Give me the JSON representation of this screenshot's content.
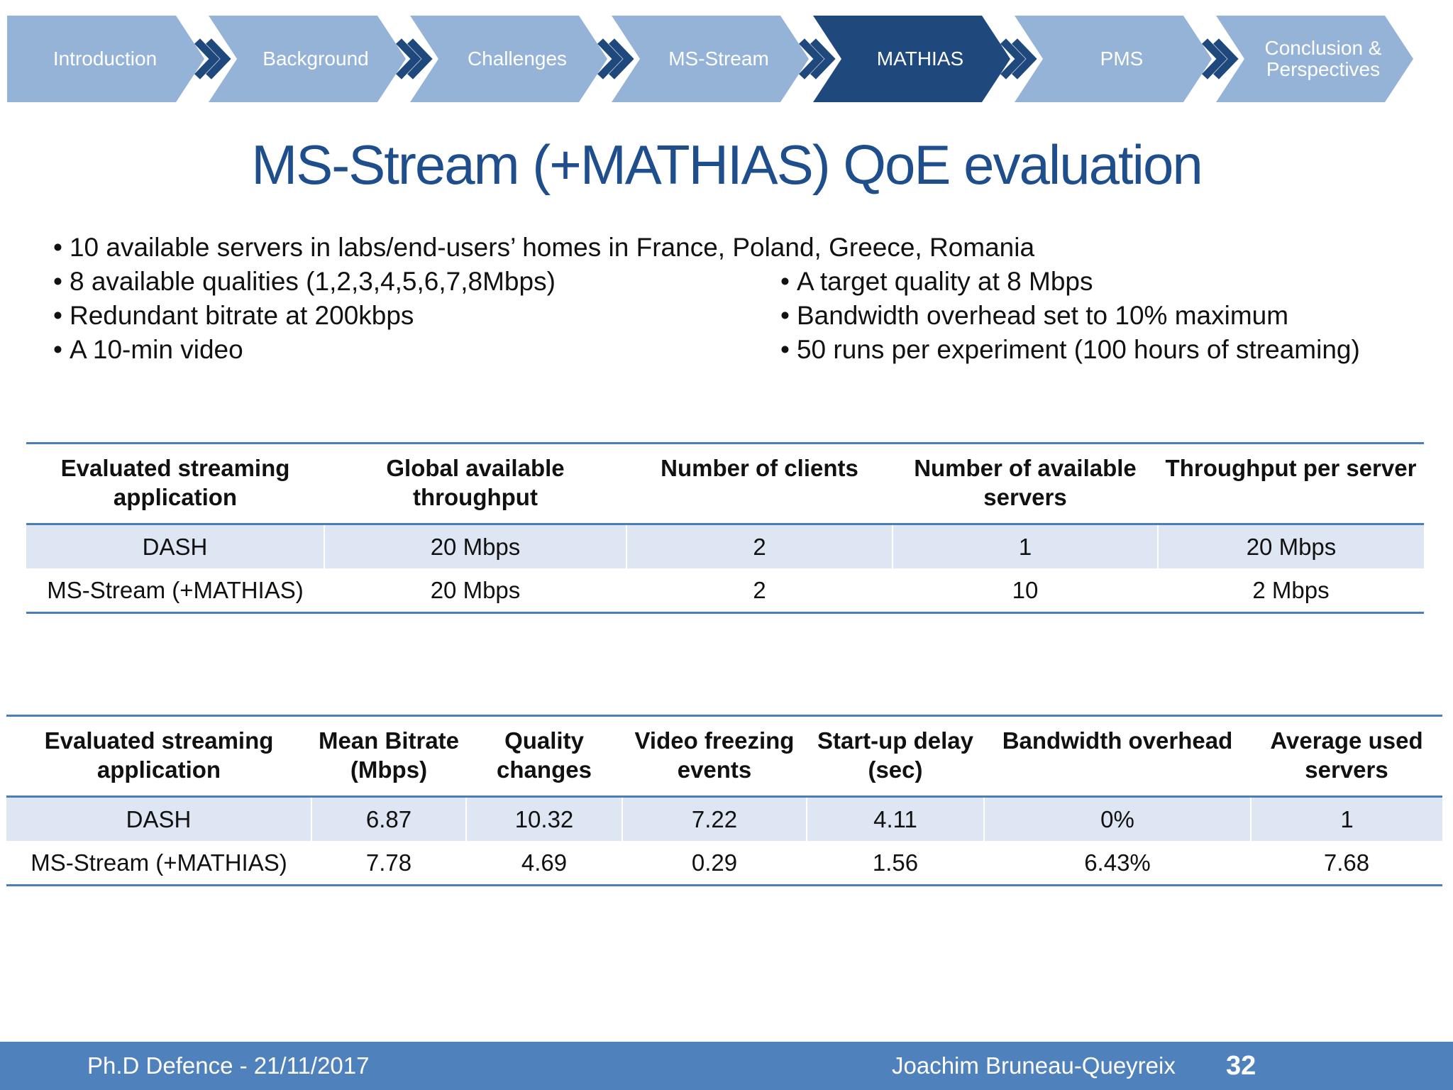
{
  "nav": {
    "items": [
      {
        "label": "Introduction",
        "active": false
      },
      {
        "label": "Background",
        "active": false
      },
      {
        "label": "Challenges",
        "active": false
      },
      {
        "label": "MS-Stream",
        "active": false
      },
      {
        "label": "MATHIAS",
        "active": true
      },
      {
        "label": "PMS",
        "active": false
      },
      {
        "label": "Conclusion & Perspectives",
        "active": false
      }
    ],
    "colors": {
      "inactive": "#95b3d7",
      "active": "#1f497d",
      "separator": "#1f497d"
    }
  },
  "title": "MS-Stream (+MATHIAS) QoE evaluation",
  "bullets": {
    "full": "10 available servers in labs/end-users’ homes in France, Poland, Greece, Romania",
    "left": [
      "8 available qualities (1,2,3,4,5,6,7,8Mbps)",
      "Redundant bitrate at 200kbps",
      "A 10-min video"
    ],
    "right": [
      "A target quality at 8 Mbps",
      "Bandwidth overhead set to 10% maximum",
      "50 runs per experiment (100 hours of streaming)"
    ]
  },
  "table1": {
    "headers": [
      "Evaluated streaming application",
      "Global available throughput",
      "Number of clients",
      "Number of available servers",
      "Throughput per server"
    ],
    "rows": [
      [
        "DASH",
        "20 Mbps",
        "2",
        "1",
        "20 Mbps"
      ],
      [
        "MS-Stream (+MATHIAS)",
        "20 Mbps",
        "2",
        "10",
        "2 Mbps"
      ]
    ]
  },
  "table2": {
    "headers": [
      "Evaluated streaming application",
      "Mean Bitrate (Mbps)",
      "Quality changes",
      "Video freezing events",
      "Start-up delay (sec)",
      "Bandwidth overhead",
      "Average used servers"
    ],
    "rows": [
      [
        "DASH",
        "6.87",
        "10.32",
        "7.22",
        "4.11",
        "0%",
        "1"
      ],
      [
        "MS-Stream (+MATHIAS)",
        "7.78",
        "4.69",
        "0.29",
        "1.56",
        "6.43%",
        "7.68"
      ]
    ]
  },
  "footer": {
    "left": "Ph.D Defence - 21/11/2017",
    "author": "Joachim Bruneau-Queyreix",
    "page": "32"
  }
}
